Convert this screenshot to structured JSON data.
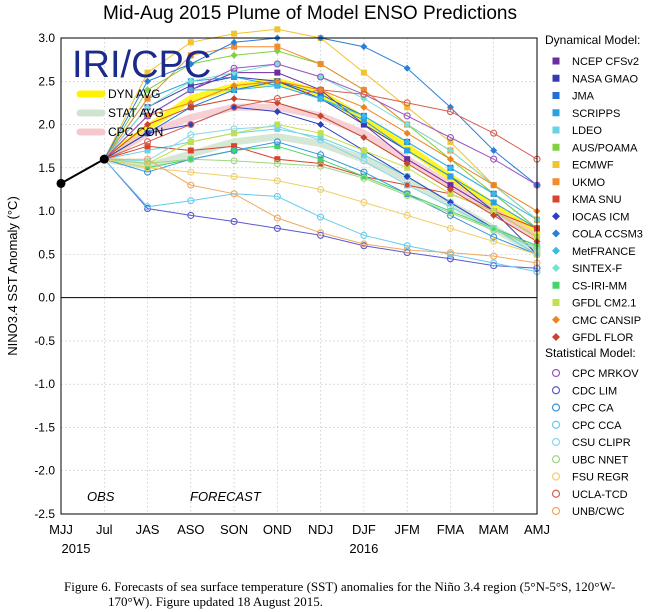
{
  "caption": {
    "line1": "Figure 6. Forecasts of sea surface temperature (SST) anomalies for the Niño 3.4 region (5°N-5°S, 120°W-",
    "line2": "170°W). Figure updated 18 August 2015."
  },
  "chart_data": {
    "type": "line",
    "title": "Mid-Aug 2015 Plume of Model ENSO Predictions",
    "logo_text": "IRI/CPC",
    "ylabel": "NINO3.4 SST Anomaly (°C)",
    "ylim": [
      -2.5,
      3.0
    ],
    "yticks": [
      3.0,
      2.5,
      2.0,
      1.5,
      1.0,
      0.5,
      0.0,
      -0.5,
      -1.0,
      -1.5,
      -2.0,
      -2.5
    ],
    "ytick_labels": [
      "3.0",
      "2.5",
      "2.0",
      "1.5",
      "1.0",
      "0.5",
      "0.0",
      "-0.5",
      "-1.0",
      "-1.5",
      "-2.0",
      "-2.5"
    ],
    "categories": [
      "MJJ",
      "Jul",
      "JAS",
      "ASO",
      "SON",
      "OND",
      "NDJ",
      "DJF",
      "JFM",
      "FMA",
      "MAM",
      "AMJ"
    ],
    "year_labels": [
      {
        "label": "2015",
        "index": 0
      },
      {
        "label": "2016",
        "index": 7
      }
    ],
    "obs_label": "OBS",
    "forecast_label": "FORECAST",
    "observed": {
      "x": [
        0,
        1
      ],
      "values": [
        1.32,
        1.6
      ],
      "color": "#000000"
    },
    "averages": {
      "items": [
        {
          "name": "DYN AVG",
          "color": "#fff200",
          "values": [
            1.6,
            1.96,
            2.3,
            2.44,
            2.5,
            2.36,
            2.06,
            1.74,
            1.39,
            1.06,
            0.75
          ]
        },
        {
          "name": "STAT AVG",
          "color": "#cfe3cf",
          "values": [
            1.6,
            1.52,
            1.66,
            1.8,
            1.86,
            1.78,
            1.6,
            1.36,
            1.08,
            0.8,
            0.52
          ]
        },
        {
          "name": "CPC CON",
          "color": "#f4c8cc",
          "values": [
            1.6,
            1.9,
            2.08,
            2.2,
            2.2,
            2.1,
            1.9,
            1.6,
            1.3,
            1.0,
            0.7
          ]
        }
      ]
    },
    "dynamical": {
      "header": "Dynamical Model:",
      "models": [
        {
          "name": "NCEP CFSv2",
          "color": "#6a2c9e",
          "values": [
            1.6,
            2.1,
            2.4,
            2.6,
            2.6,
            2.4,
            2.0,
            1.6,
            1.3,
            1.0,
            0.7
          ]
        },
        {
          "name": "NASA GMAO",
          "color": "#3a3ab0",
          "values": [
            1.6,
            2.2,
            2.45,
            2.55,
            2.5,
            2.3,
            2.0,
            1.7,
            1.4,
            1.0,
            0.5
          ]
        },
        {
          "name": "JMA",
          "color": "#1f6fd6",
          "values": [
            1.6,
            1.9,
            2.2,
            2.4,
            2.5,
            2.35,
            2.1,
            1.8,
            1.5,
            1.2,
            0.8
          ]
        },
        {
          "name": "SCRIPPS",
          "color": "#2aa1e0",
          "values": [
            1.6,
            2.3,
            2.5,
            2.55,
            2.45,
            2.3,
            2.05,
            1.7,
            1.4,
            1.1,
            0.8
          ]
        },
        {
          "name": "LDEO",
          "color": "#67d4e6",
          "values": [
            1.6,
            1.7,
            1.8,
            1.9,
            1.95,
            1.85,
            1.65,
            1.4,
            1.1,
            0.8,
            0.5
          ]
        },
        {
          "name": "AUS/POAMA",
          "color": "#7fd142",
          "values": [
            1.6,
            2.4,
            2.7,
            2.8,
            2.85,
            2.7,
            2.4,
            2.0,
            1.6,
            1.2,
            0.8
          ]
        },
        {
          "name": "ECMWF",
          "color": "#f2c230",
          "values": [
            1.6,
            2.6,
            2.95,
            3.05,
            3.1,
            3.0,
            2.6,
            2.2,
            1.8,
            1.3,
            0.9
          ]
        },
        {
          "name": "UKMO",
          "color": "#f08c2e",
          "values": [
            1.6,
            2.3,
            2.8,
            2.9,
            2.9,
            2.7,
            2.4,
            2.0,
            1.7,
            1.3,
            0.9
          ]
        },
        {
          "name": "KMA SNU",
          "color": "#d9442c",
          "values": [
            1.6,
            1.75,
            1.7,
            1.75,
            1.6,
            1.55,
            1.4,
            1.3,
            1.2,
            1.0,
            0.8
          ]
        },
        {
          "name": "IOCAS ICM",
          "color": "#2c3fc0",
          "values": [
            1.6,
            1.9,
            2.0,
            2.2,
            2.15,
            2.0,
            1.7,
            1.4,
            1.1,
            0.8,
            0.6
          ]
        },
        {
          "name": "COLA CCSM3",
          "color": "#2a7fd8",
          "values": [
            1.6,
            2.5,
            2.7,
            2.95,
            3.0,
            3.0,
            2.9,
            2.65,
            2.2,
            1.7,
            1.3
          ]
        },
        {
          "name": "MetFRANCE",
          "color": "#39b9e6",
          "values": [
            1.6,
            2.1,
            2.4,
            2.4,
            2.45,
            2.3,
            2.1,
            1.8,
            1.5,
            1.2,
            0.9
          ]
        },
        {
          "name": "SINTEX-F",
          "color": "#78e0d4",
          "values": [
            1.6,
            2.2,
            2.5,
            2.6,
            2.7,
            2.55,
            2.3,
            2.0,
            1.7,
            1.3,
            0.9
          ]
        },
        {
          "name": "CS-IRI-MM",
          "color": "#44d468",
          "values": [
            1.6,
            1.5,
            1.6,
            1.7,
            1.75,
            1.6,
            1.4,
            1.2,
            1.0,
            0.8,
            0.6
          ]
        },
        {
          "name": "GFDL CM2.1",
          "color": "#c2e04a",
          "values": [
            1.6,
            1.55,
            1.8,
            1.9,
            2.0,
            1.9,
            1.7,
            1.5,
            1.2,
            1.0,
            0.7
          ]
        },
        {
          "name": "CMC CANSIP",
          "color": "#f0821e",
          "values": [
            1.6,
            2.1,
            2.25,
            2.45,
            2.5,
            2.4,
            2.2,
            1.9,
            1.6,
            1.3,
            1.0
          ]
        },
        {
          "name": "GFDL FLOR",
          "color": "#c8442c",
          "values": [
            1.6,
            2.0,
            2.2,
            2.3,
            2.25,
            2.1,
            1.85,
            1.55,
            1.25,
            0.95,
            0.65
          ]
        }
      ]
    },
    "statistical": {
      "header": "Statistical Model:",
      "models": [
        {
          "name": "CPC MRKOV",
          "color": "#9b55c0",
          "values": [
            1.6,
            2.1,
            2.4,
            2.65,
            2.7,
            2.55,
            2.35,
            2.1,
            1.85,
            1.6,
            1.3
          ]
        },
        {
          "name": "CDC LIM",
          "color": "#5a5ad0",
          "values": [
            1.6,
            1.03,
            0.95,
            0.88,
            0.8,
            0.72,
            0.6,
            0.52,
            0.45,
            0.37,
            0.34
          ]
        },
        {
          "name": "CPC CA",
          "color": "#3a94dc",
          "values": [
            1.6,
            1.45,
            1.6,
            1.7,
            1.8,
            1.65,
            1.45,
            1.2,
            0.95,
            0.7,
            0.5
          ]
        },
        {
          "name": "CPC CCA",
          "color": "#66ccee",
          "values": [
            1.6,
            1.05,
            1.12,
            1.2,
            1.17,
            0.93,
            0.72,
            0.6,
            0.5,
            0.4,
            0.3
          ]
        },
        {
          "name": "CSU CLIPR",
          "color": "#88d8e8",
          "values": [
            1.6,
            1.58,
            1.88,
            1.95,
            1.98,
            1.82,
            1.58,
            1.3,
            1.05,
            0.8,
            0.55
          ]
        },
        {
          "name": "UBC NNET",
          "color": "#9ed880",
          "values": [
            1.6,
            1.55,
            1.6,
            1.58,
            1.55,
            1.52,
            1.38,
            1.18,
            0.98,
            0.78,
            0.58
          ]
        },
        {
          "name": "FSU REGR",
          "color": "#f0cf6a",
          "values": [
            1.6,
            1.5,
            1.45,
            1.4,
            1.35,
            1.25,
            1.1,
            0.95,
            0.8,
            0.65,
            0.5
          ]
        },
        {
          "name": "UCLA-TCD",
          "color": "#d86050",
          "values": [
            1.6,
            1.8,
            2.0,
            2.2,
            2.3,
            2.4,
            2.35,
            2.25,
            2.15,
            1.9,
            1.6
          ]
        },
        {
          "name": "UNB/CWC",
          "color": "#f0a860",
          "values": [
            1.6,
            1.6,
            1.3,
            1.2,
            0.92,
            0.75,
            0.62,
            0.55,
            0.52,
            0.48,
            0.4
          ]
        }
      ]
    }
  }
}
